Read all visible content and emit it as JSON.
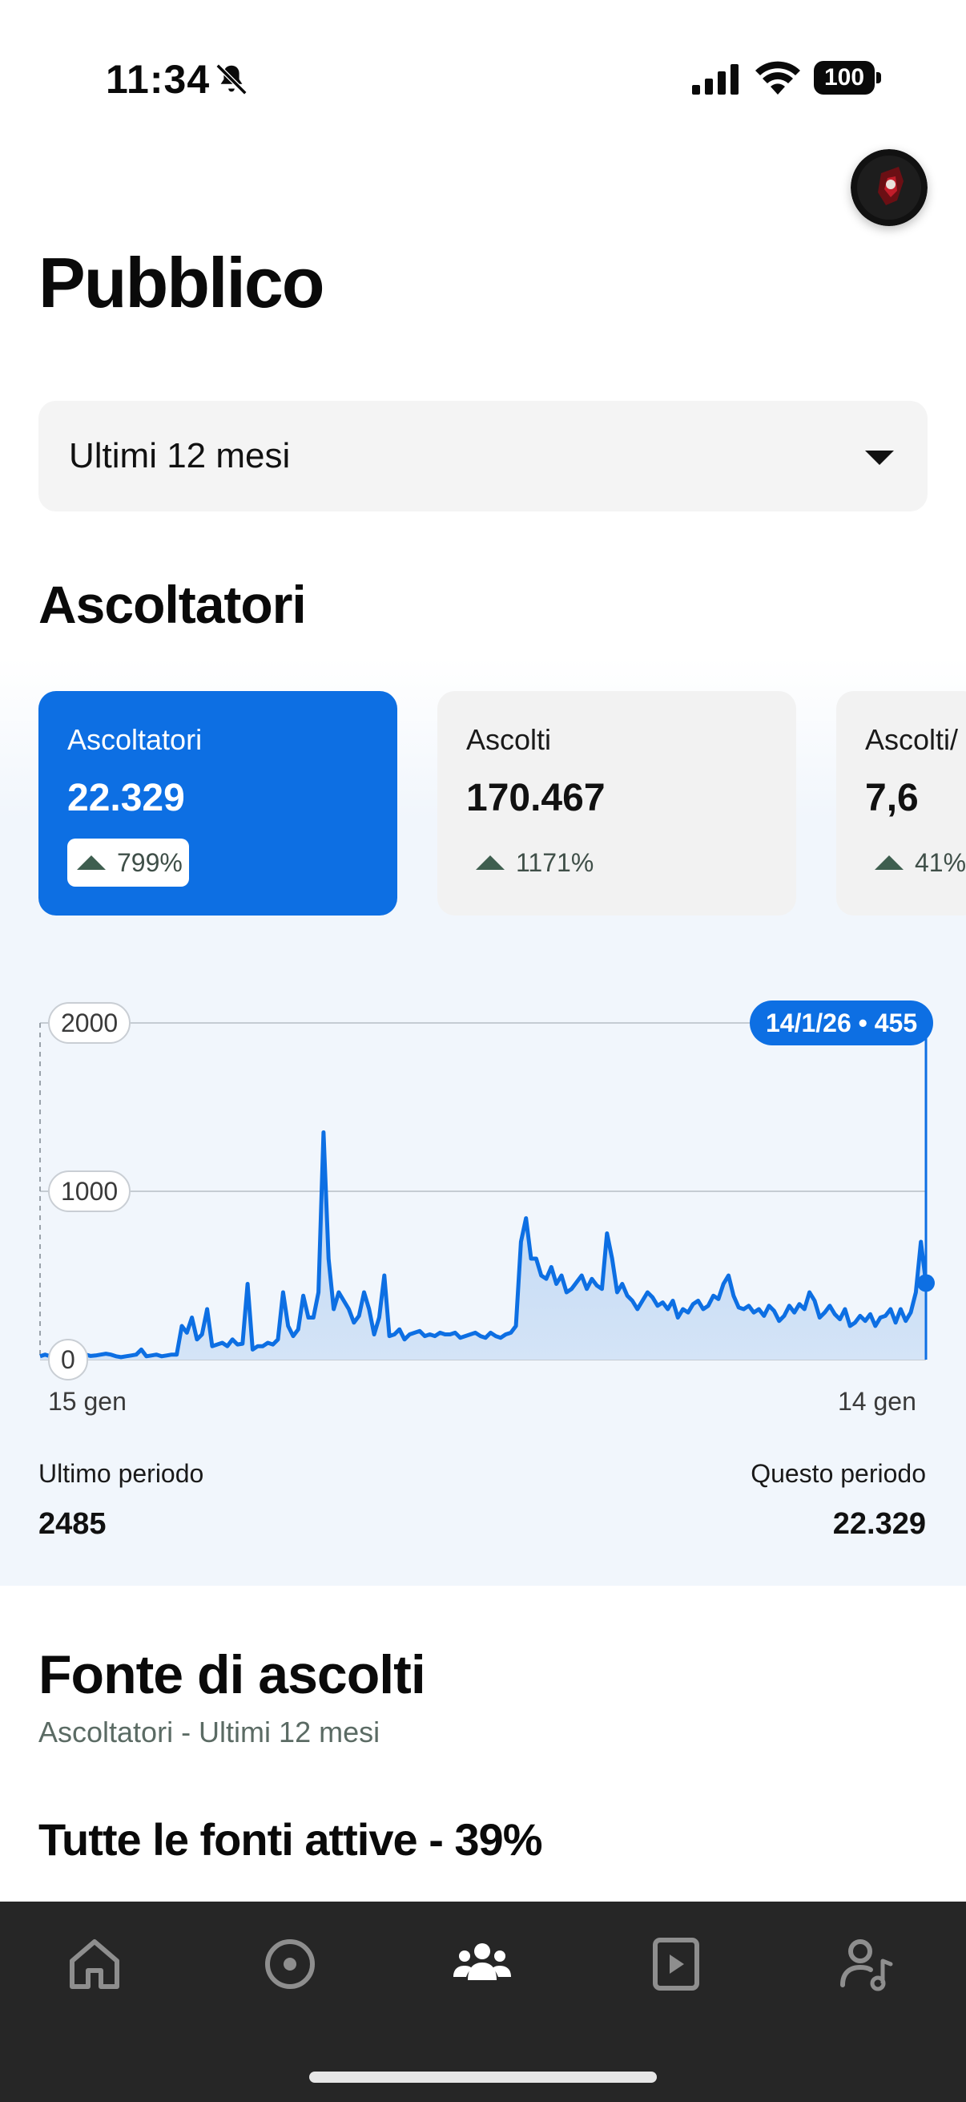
{
  "status_bar": {
    "time": "11:34",
    "battery": "100"
  },
  "page": {
    "title": "Pubblico"
  },
  "period_select": {
    "value": "Ultimi 12 mesi"
  },
  "section_listeners": {
    "title": "Ascoltatori"
  },
  "metrics": [
    {
      "label": "Ascoltatori",
      "value": "22.329",
      "change": "799%",
      "active": true
    },
    {
      "label": "Ascolti",
      "value": "170.467",
      "change": "1171%",
      "active": false
    },
    {
      "label": "Ascolti/",
      "value": "7,6",
      "change": "41%",
      "active": false
    }
  ],
  "chart_data": {
    "type": "area",
    "x_start_label": "15 gen",
    "x_end_label": "14 gen",
    "y_ticks": [
      "2000",
      "1000",
      "0"
    ],
    "ylim": [
      0,
      2000
    ],
    "tooltip": "14/1/26 • 455",
    "series": [
      {
        "values": [
          20,
          30,
          20,
          35,
          25,
          20,
          30,
          25,
          20,
          30,
          22,
          25,
          30,
          35,
          30,
          20,
          15,
          20,
          25,
          30,
          60,
          20,
          25,
          30,
          20,
          25,
          30,
          30,
          200,
          160,
          250,
          120,
          150,
          300,
          80,
          90,
          100,
          80,
          120,
          90,
          95,
          450,
          60,
          80,
          80,
          100,
          90,
          120,
          400,
          200,
          140,
          180,
          380,
          250,
          250,
          400,
          1350,
          600,
          300,
          400,
          350,
          300,
          220,
          260,
          400,
          300,
          150,
          250,
          500,
          140,
          150,
          180,
          120,
          150,
          160,
          170,
          140,
          150,
          140,
          160,
          150,
          150,
          160,
          130,
          140,
          150,
          160,
          140,
          130,
          160,
          140,
          130,
          150,
          160,
          200,
          700,
          840,
          600,
          600,
          500,
          480,
          550,
          450,
          500,
          400,
          420,
          460,
          500,
          420,
          480,
          440,
          420,
          750,
          600,
          400,
          450,
          380,
          350,
          300,
          350,
          400,
          370,
          320,
          340,
          300,
          350,
          250,
          300,
          280,
          330,
          350,
          300,
          320,
          380,
          360,
          450,
          500,
          380,
          310,
          300,
          320,
          280,
          300,
          260,
          320,
          290,
          230,
          260,
          320,
          280,
          330,
          300,
          400,
          350,
          250,
          280,
          320,
          270,
          240,
          300,
          200,
          220,
          260,
          230,
          270,
          200,
          250,
          260,
          300,
          220,
          300,
          230,
          280,
          400,
          700,
          455
        ]
      }
    ]
  },
  "periods": {
    "last_label": "Ultimo periodo",
    "last_value": "2485",
    "current_label": "Questo periodo",
    "current_value": "22.329"
  },
  "source": {
    "title": "Fonte di ascolti",
    "subtitle": "Ascoltatori - Ultimi 12 mesi",
    "all_sources": "Tutte le fonti attive - 39%"
  },
  "tabs": [
    "home-icon",
    "disc-icon",
    "audience-icon",
    "video-icon",
    "artist-icon"
  ]
}
